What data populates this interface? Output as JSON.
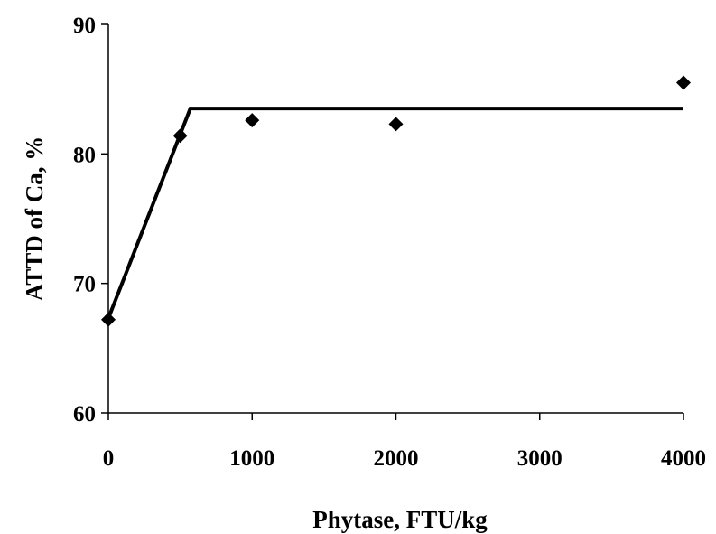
{
  "chart_data": {
    "type": "scatter",
    "xlabel": "Phytase, FTU/kg",
    "ylabel": "ATTD of Ca, %",
    "xlim": [
      0,
      4000
    ],
    "ylim": [
      60,
      90
    ],
    "x_ticks": [
      0,
      1000,
      2000,
      3000,
      4000
    ],
    "y_ticks": [
      60,
      70,
      80,
      90
    ],
    "x_tick_labels": [
      "0",
      "1000",
      "2000",
      "3000",
      "4000"
    ],
    "y_tick_labels": [
      "60",
      "70",
      "80",
      "90"
    ],
    "grid": false,
    "legend": "none",
    "points": [
      {
        "x": 0,
        "y": 67.2
      },
      {
        "x": 500,
        "y": 81.4
      },
      {
        "x": 1000,
        "y": 82.6
      },
      {
        "x": 2000,
        "y": 82.3
      },
      {
        "x": 4000,
        "y": 85.5
      }
    ],
    "fit_line": {
      "type": "broken-line",
      "points": [
        {
          "x": 0,
          "y": 67.3
        },
        {
          "x": 570,
          "y": 83.5
        },
        {
          "x": 4000,
          "y": 83.5
        }
      ]
    },
    "colors": {
      "marker": "#000000",
      "line": "#000000",
      "axis": "#000000"
    }
  }
}
